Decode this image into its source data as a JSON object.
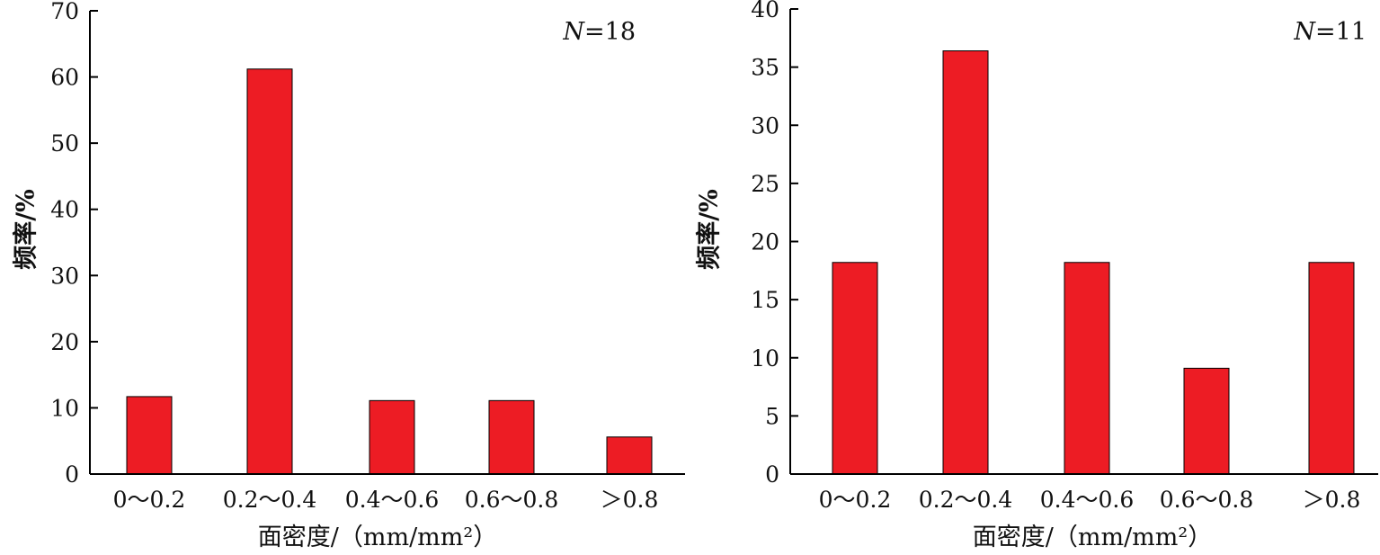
{
  "chart_data": [
    {
      "type": "bar",
      "annotation": {
        "var": "N",
        "eq": "=",
        "value": "18"
      },
      "categories": [
        "0～0.2",
        "0.2～0.4",
        "0.4～0.6",
        "0.6～0.8",
        "＞0.8"
      ],
      "values": [
        11.7,
        61.2,
        11.1,
        11.1,
        5.6
      ],
      "xlabel": "面密度/（mm/mm²）",
      "ylabel": "频率/%",
      "ylim": [
        0,
        70
      ],
      "yticks": [
        0,
        10,
        20,
        30,
        40,
        50,
        60,
        70
      ],
      "bar_color": "#ed1c24"
    },
    {
      "type": "bar",
      "annotation": {
        "var": "N",
        "eq": "=",
        "value": "11"
      },
      "categories": [
        "0～0.2",
        "0.2～0.4",
        "0.4～0.6",
        "0.6～0.8",
        "＞0.8"
      ],
      "values": [
        18.2,
        36.4,
        18.2,
        9.1,
        18.2
      ],
      "xlabel": "面密度/（mm/mm²）",
      "ylabel": "频率/%",
      "ylim": [
        0,
        40
      ],
      "yticks": [
        0,
        5,
        10,
        15,
        20,
        25,
        30,
        35,
        40
      ],
      "bar_color": "#ed1c24"
    }
  ]
}
